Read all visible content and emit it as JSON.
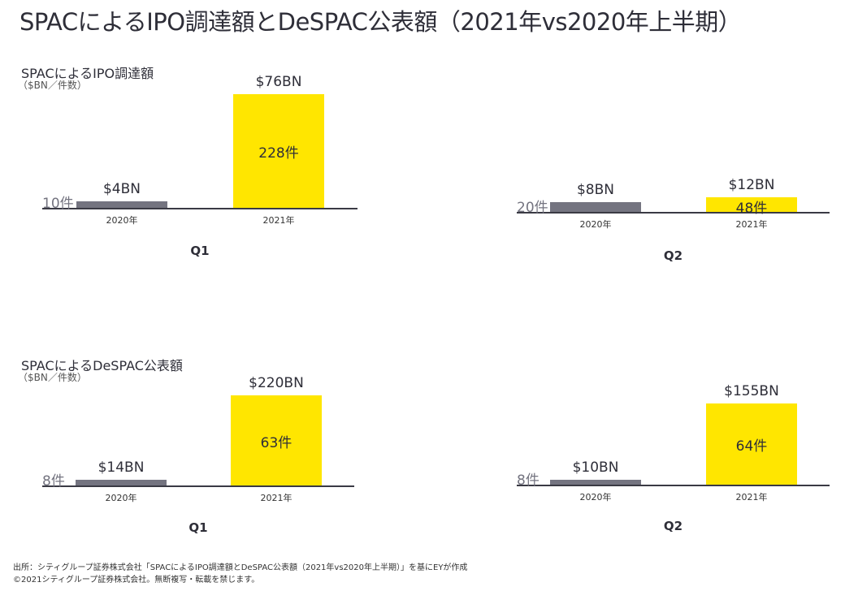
{
  "title": "SPACによるIPO調達額とDeSPAC公表額（2021年vs2020年上半期）",
  "colors": {
    "y2020": "#747480",
    "y2021": "#ffe600",
    "axis": "#3a3a44"
  },
  "sections": [
    {
      "title": "SPACによるIPO調達額",
      "unit": "（$BN／件数）"
    },
    {
      "title": "SPACによるDeSPAC公表額",
      "unit": "（$BN／件数）"
    }
  ],
  "chart_data": [
    {
      "type": "bar",
      "section": "SPACによるIPO調達額",
      "quarter": "Q1",
      "categories": [
        "2020年",
        "2021年"
      ],
      "values": [
        4,
        76
      ],
      "value_labels": [
        "$4BN",
        "$76BN"
      ],
      "counts": [
        10,
        228
      ],
      "count_labels": [
        "10件",
        "228件"
      ],
      "ylabel": "$BN／件数"
    },
    {
      "type": "bar",
      "section": "SPACによるIPO調達額",
      "quarter": "Q2",
      "categories": [
        "2020年",
        "2021年"
      ],
      "values": [
        8,
        12
      ],
      "value_labels": [
        "$8BN",
        "$12BN"
      ],
      "counts": [
        20,
        48
      ],
      "count_labels": [
        "20件",
        "48件"
      ],
      "ylabel": "$BN／件数"
    },
    {
      "type": "bar",
      "section": "SPACによるDeSPAC公表額",
      "quarter": "Q1",
      "categories": [
        "2020年",
        "2021年"
      ],
      "values": [
        14,
        220
      ],
      "value_labels": [
        "$14BN",
        "$220BN"
      ],
      "counts": [
        8,
        63
      ],
      "count_labels": [
        "8件",
        "63件"
      ],
      "ylabel": "$BN／件数"
    },
    {
      "type": "bar",
      "section": "SPACによるDeSPAC公表額",
      "quarter": "Q2",
      "categories": [
        "2020年",
        "2021年"
      ],
      "values": [
        10,
        155
      ],
      "value_labels": [
        "$10BN",
        "$155BN"
      ],
      "counts": [
        8,
        64
      ],
      "count_labels": [
        "8件",
        "64件"
      ],
      "ylabel": "$BN／件数"
    }
  ],
  "footer": {
    "source": "出所：シティグループ証券株式会社「SPACによるIPO調達額とDeSPAC公表額（2021年vs2020年上半期）」を基にEYが作成",
    "copyright": "©2021シティグループ証券株式会社。無断複写・転載を禁じます。"
  }
}
